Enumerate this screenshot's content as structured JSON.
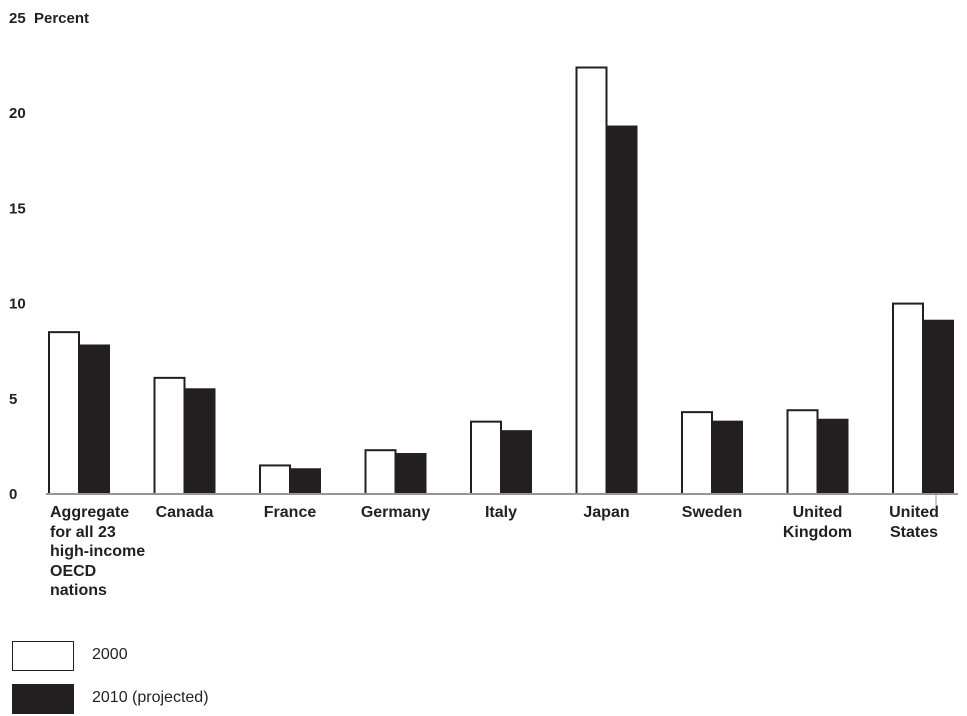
{
  "chart_data": {
    "type": "bar",
    "ylabel": "Percent",
    "ylim": [
      0,
      25
    ],
    "yticks": [
      0,
      5,
      10,
      15,
      20,
      25
    ],
    "grid": false,
    "legend_position": "bottom-left",
    "categories": [
      "Aggregate for all 23 high-income OECD nations",
      "Canada",
      "France",
      "Germany",
      "Italy",
      "Japan",
      "Sweden",
      "United Kingdom",
      "United States"
    ],
    "series": [
      {
        "name": "2000",
        "color": "#ffffff",
        "values": [
          8.5,
          6.1,
          1.5,
          2.3,
          3.8,
          22.4,
          4.3,
          4.4,
          10.0
        ]
      },
      {
        "name": "2010 (projected)",
        "color": "#231f20",
        "values": [
          7.8,
          5.5,
          1.3,
          2.1,
          3.3,
          19.3,
          3.8,
          3.9,
          9.1
        ]
      }
    ]
  }
}
